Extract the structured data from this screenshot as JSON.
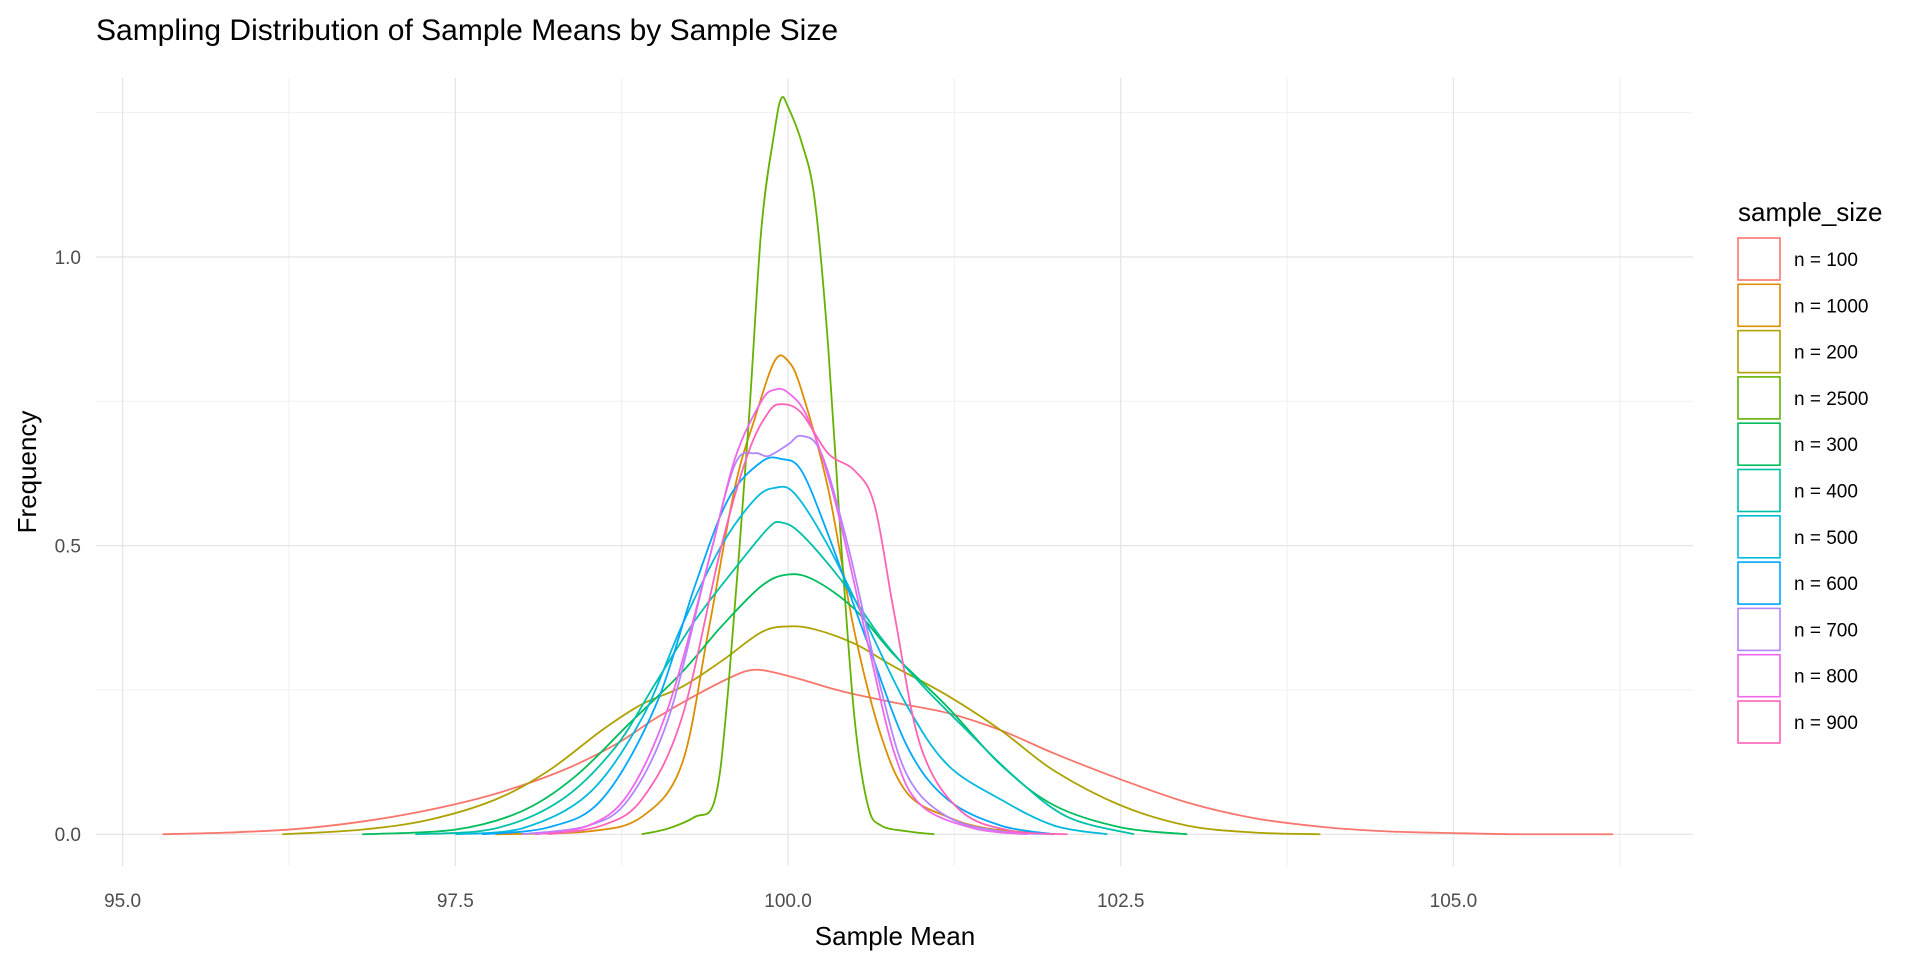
{
  "chart_data": {
    "type": "line",
    "title": "Sampling Distribution of Sample Means by Sample Size",
    "xlabel": "Sample Mean",
    "ylabel": "Frequency",
    "xlim": [
      94.8,
      106.8
    ],
    "ylim": [
      -0.055,
      1.31
    ],
    "x_ticks": [
      95.0,
      97.5,
      100.0,
      102.5,
      105.0
    ],
    "x_tick_labels": [
      "95.0",
      "97.5",
      "100.0",
      "102.5",
      "105.0"
    ],
    "y_ticks": [
      0.0,
      0.5,
      1.0
    ],
    "y_tick_labels": [
      "0.0",
      "0.5",
      "1.0"
    ],
    "grid": true,
    "legend": {
      "title": "sample_size",
      "position": "right"
    },
    "series": [
      {
        "name": "n = 100",
        "color": "#F8766D",
        "points": [
          [
            95.3,
            0.0
          ],
          [
            95.8,
            0.003
          ],
          [
            96.3,
            0.009
          ],
          [
            96.8,
            0.022
          ],
          [
            97.3,
            0.042
          ],
          [
            97.8,
            0.07
          ],
          [
            98.3,
            0.11
          ],
          [
            98.7,
            0.155
          ],
          [
            99.0,
            0.2
          ],
          [
            99.3,
            0.24
          ],
          [
            99.6,
            0.275
          ],
          [
            99.75,
            0.285
          ],
          [
            99.9,
            0.28
          ],
          [
            100.1,
            0.268
          ],
          [
            100.4,
            0.248
          ],
          [
            100.8,
            0.228
          ],
          [
            101.2,
            0.21
          ],
          [
            101.6,
            0.18
          ],
          [
            102.0,
            0.14
          ],
          [
            102.5,
            0.095
          ],
          [
            103.0,
            0.055
          ],
          [
            103.5,
            0.028
          ],
          [
            104.0,
            0.013
          ],
          [
            104.5,
            0.005
          ],
          [
            105.0,
            0.002
          ],
          [
            105.5,
            0.0
          ],
          [
            106.2,
            0.0
          ]
        ]
      },
      {
        "name": "n = 1000",
        "color": "#DB8E00",
        "points": [
          [
            97.8,
            0.0
          ],
          [
            98.5,
            0.005
          ],
          [
            98.9,
            0.03
          ],
          [
            99.2,
            0.12
          ],
          [
            99.4,
            0.35
          ],
          [
            99.6,
            0.6
          ],
          [
            99.75,
            0.72
          ],
          [
            99.9,
            0.82
          ],
          [
            100.0,
            0.82
          ],
          [
            100.1,
            0.77
          ],
          [
            100.3,
            0.6
          ],
          [
            100.5,
            0.35
          ],
          [
            100.7,
            0.17
          ],
          [
            100.9,
            0.07
          ],
          [
            101.2,
            0.03
          ],
          [
            101.5,
            0.01
          ],
          [
            102.0,
            0.0
          ]
        ]
      },
      {
        "name": "n = 200",
        "color": "#AEA200",
        "points": [
          [
            96.2,
            0.0
          ],
          [
            96.8,
            0.008
          ],
          [
            97.3,
            0.025
          ],
          [
            97.8,
            0.06
          ],
          [
            98.2,
            0.11
          ],
          [
            98.6,
            0.18
          ],
          [
            98.9,
            0.225
          ],
          [
            99.2,
            0.255
          ],
          [
            99.5,
            0.3
          ],
          [
            99.8,
            0.35
          ],
          [
            100.0,
            0.36
          ],
          [
            100.2,
            0.355
          ],
          [
            100.5,
            0.33
          ],
          [
            100.8,
            0.29
          ],
          [
            101.2,
            0.24
          ],
          [
            101.6,
            0.18
          ],
          [
            102.0,
            0.11
          ],
          [
            102.5,
            0.05
          ],
          [
            103.0,
            0.015
          ],
          [
            103.5,
            0.003
          ],
          [
            104.0,
            0.0
          ]
        ]
      },
      {
        "name": "n = 2500",
        "color": "#64B200",
        "points": [
          [
            98.9,
            0.0
          ],
          [
            99.1,
            0.01
          ],
          [
            99.3,
            0.03
          ],
          [
            99.45,
            0.06
          ],
          [
            99.55,
            0.25
          ],
          [
            99.7,
            0.7
          ],
          [
            99.8,
            1.05
          ],
          [
            99.9,
            1.22
          ],
          [
            99.95,
            1.275
          ],
          [
            100.0,
            1.26
          ],
          [
            100.1,
            1.2
          ],
          [
            100.2,
            1.1
          ],
          [
            100.3,
            0.85
          ],
          [
            100.4,
            0.5
          ],
          [
            100.5,
            0.2
          ],
          [
            100.6,
            0.05
          ],
          [
            100.7,
            0.015
          ],
          [
            100.9,
            0.005
          ],
          [
            101.1,
            0.0
          ]
        ]
      },
      {
        "name": "n = 300",
        "color": "#00BD5C",
        "points": [
          [
            96.8,
            0.0
          ],
          [
            97.5,
            0.008
          ],
          [
            98.0,
            0.04
          ],
          [
            98.4,
            0.1
          ],
          [
            98.8,
            0.19
          ],
          [
            99.2,
            0.28
          ],
          [
            99.5,
            0.36
          ],
          [
            99.8,
            0.43
          ],
          [
            100.0,
            0.45
          ],
          [
            100.2,
            0.44
          ],
          [
            100.5,
            0.39
          ],
          [
            100.8,
            0.31
          ],
          [
            101.2,
            0.22
          ],
          [
            101.6,
            0.12
          ],
          [
            102.0,
            0.05
          ],
          [
            102.5,
            0.012
          ],
          [
            103.0,
            0.0
          ]
        ]
      },
      {
        "name": "n = 400",
        "color": "#00C1A7",
        "points": [
          [
            97.2,
            0.0
          ],
          [
            97.8,
            0.01
          ],
          [
            98.3,
            0.06
          ],
          [
            98.7,
            0.15
          ],
          [
            99.0,
            0.26
          ],
          [
            99.3,
            0.37
          ],
          [
            99.6,
            0.46
          ],
          [
            99.85,
            0.53
          ],
          [
            99.95,
            0.54
          ],
          [
            100.1,
            0.52
          ],
          [
            100.4,
            0.44
          ],
          [
            100.7,
            0.34
          ],
          [
            101.0,
            0.26
          ],
          [
            101.3,
            0.19
          ],
          [
            101.7,
            0.1
          ],
          [
            102.1,
            0.03
          ],
          [
            102.6,
            0.0
          ]
        ]
      },
      {
        "name": "n = 500",
        "color": "#00BADE",
        "points": [
          [
            97.5,
            0.0
          ],
          [
            98.0,
            0.01
          ],
          [
            98.5,
            0.07
          ],
          [
            98.9,
            0.2
          ],
          [
            99.2,
            0.36
          ],
          [
            99.5,
            0.5
          ],
          [
            99.75,
            0.58
          ],
          [
            99.9,
            0.6
          ],
          [
            100.05,
            0.59
          ],
          [
            100.3,
            0.5
          ],
          [
            100.6,
            0.36
          ],
          [
            100.9,
            0.22
          ],
          [
            101.2,
            0.12
          ],
          [
            101.6,
            0.06
          ],
          [
            102.0,
            0.015
          ],
          [
            102.4,
            0.0
          ]
        ]
      },
      {
        "name": "n = 600",
        "color": "#00A6FF",
        "points": [
          [
            97.7,
            0.0
          ],
          [
            98.2,
            0.012
          ],
          [
            98.6,
            0.06
          ],
          [
            99.0,
            0.22
          ],
          [
            99.3,
            0.43
          ],
          [
            99.55,
            0.58
          ],
          [
            99.8,
            0.645
          ],
          [
            99.95,
            0.65
          ],
          [
            100.1,
            0.63
          ],
          [
            100.3,
            0.52
          ],
          [
            100.6,
            0.33
          ],
          [
            100.9,
            0.15
          ],
          [
            101.2,
            0.06
          ],
          [
            101.6,
            0.015
          ],
          [
            102.0,
            0.0
          ]
        ]
      },
      {
        "name": "n = 700",
        "color": "#B385FF",
        "points": [
          [
            98.0,
            0.0
          ],
          [
            98.5,
            0.015
          ],
          [
            98.8,
            0.06
          ],
          [
            99.1,
            0.2
          ],
          [
            99.4,
            0.47
          ],
          [
            99.6,
            0.64
          ],
          [
            99.75,
            0.66
          ],
          [
            99.85,
            0.655
          ],
          [
            100.0,
            0.675
          ],
          [
            100.1,
            0.69
          ],
          [
            100.25,
            0.66
          ],
          [
            100.45,
            0.5
          ],
          [
            100.7,
            0.25
          ],
          [
            100.9,
            0.1
          ],
          [
            101.2,
            0.03
          ],
          [
            101.6,
            0.005
          ],
          [
            102.0,
            0.0
          ]
        ]
      },
      {
        "name": "n = 800",
        "color": "#EF67EB",
        "points": [
          [
            98.1,
            0.0
          ],
          [
            98.5,
            0.015
          ],
          [
            98.8,
            0.07
          ],
          [
            99.1,
            0.22
          ],
          [
            99.4,
            0.47
          ],
          [
            99.6,
            0.65
          ],
          [
            99.8,
            0.75
          ],
          [
            99.9,
            0.77
          ],
          [
            100.0,
            0.765
          ],
          [
            100.15,
            0.72
          ],
          [
            100.35,
            0.58
          ],
          [
            100.6,
            0.33
          ],
          [
            100.8,
            0.14
          ],
          [
            101.0,
            0.05
          ],
          [
            101.4,
            0.01
          ],
          [
            101.8,
            0.0
          ]
        ]
      },
      {
        "name": "n = 900",
        "color": "#FF63B6",
        "points": [
          [
            98.2,
            0.0
          ],
          [
            98.6,
            0.015
          ],
          [
            98.9,
            0.06
          ],
          [
            99.2,
            0.2
          ],
          [
            99.5,
            0.5
          ],
          [
            99.7,
            0.66
          ],
          [
            99.85,
            0.73
          ],
          [
            99.95,
            0.745
          ],
          [
            100.1,
            0.73
          ],
          [
            100.3,
            0.66
          ],
          [
            100.5,
            0.63
          ],
          [
            100.65,
            0.57
          ],
          [
            100.8,
            0.38
          ],
          [
            101.0,
            0.15
          ],
          [
            101.3,
            0.04
          ],
          [
            101.7,
            0.005
          ],
          [
            102.1,
            0.0
          ]
        ]
      }
    ]
  }
}
